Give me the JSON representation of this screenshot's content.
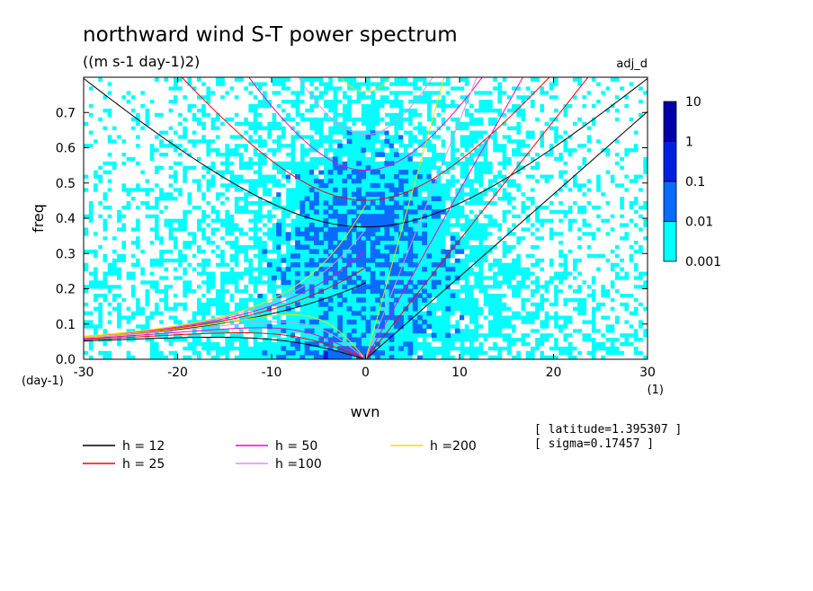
{
  "chart_data": {
    "type": "heatmap",
    "title": "northward wind S-T power spectrum",
    "subtitle": "((m s-1 day-1)2)",
    "tag": "adj_d",
    "xlabel": "wvn",
    "ylabel": "freq",
    "x_unit": "(1)",
    "y_unit": "(day-1)",
    "xlim": [
      -30,
      30
    ],
    "ylim": [
      0,
      0.8
    ],
    "x_ticks": [
      -30,
      -20,
      -10,
      0,
      10,
      20,
      30
    ],
    "x_tick_labels": [
      "-30",
      "-20",
      "-10",
      "0",
      "10",
      "20",
      "30"
    ],
    "y_ticks": [
      0.0,
      0.1,
      0.2,
      0.3,
      0.4,
      0.5,
      0.6,
      0.7
    ],
    "y_tick_labels": [
      "0.0",
      "0.1",
      "0.2",
      "0.3",
      "0.4",
      "0.5",
      "0.6",
      "0.7"
    ],
    "colorbar": {
      "scale": "log",
      "levels": [
        0.001,
        0.01,
        0.1,
        1,
        10
      ],
      "level_labels": [
        "0.001",
        "0.01",
        "0.1",
        "1",
        "10"
      ],
      "colors": [
        "#00ffff",
        "#0a6bff",
        "#0020e0",
        "#0000a8",
        "#4a00b0"
      ],
      "below_color": "#ffffff"
    },
    "dispersion_curves": [
      {
        "name": "h = 12",
        "h": 12,
        "color": "#000000"
      },
      {
        "name": "h = 25",
        "h": 25,
        "color": "#ff0000"
      },
      {
        "name": "h = 50",
        "h": 50,
        "color": "#ff00c0"
      },
      {
        "name": "h =100",
        "h": 100,
        "color": "#e090e0"
      },
      {
        "name": "h =200",
        "h": 200,
        "color": "#f0e000"
      }
    ],
    "annotations": {
      "latitude": "[ latitude=1.395307 ]",
      "sigma": "[ sigma=0.17457 ]"
    }
  }
}
